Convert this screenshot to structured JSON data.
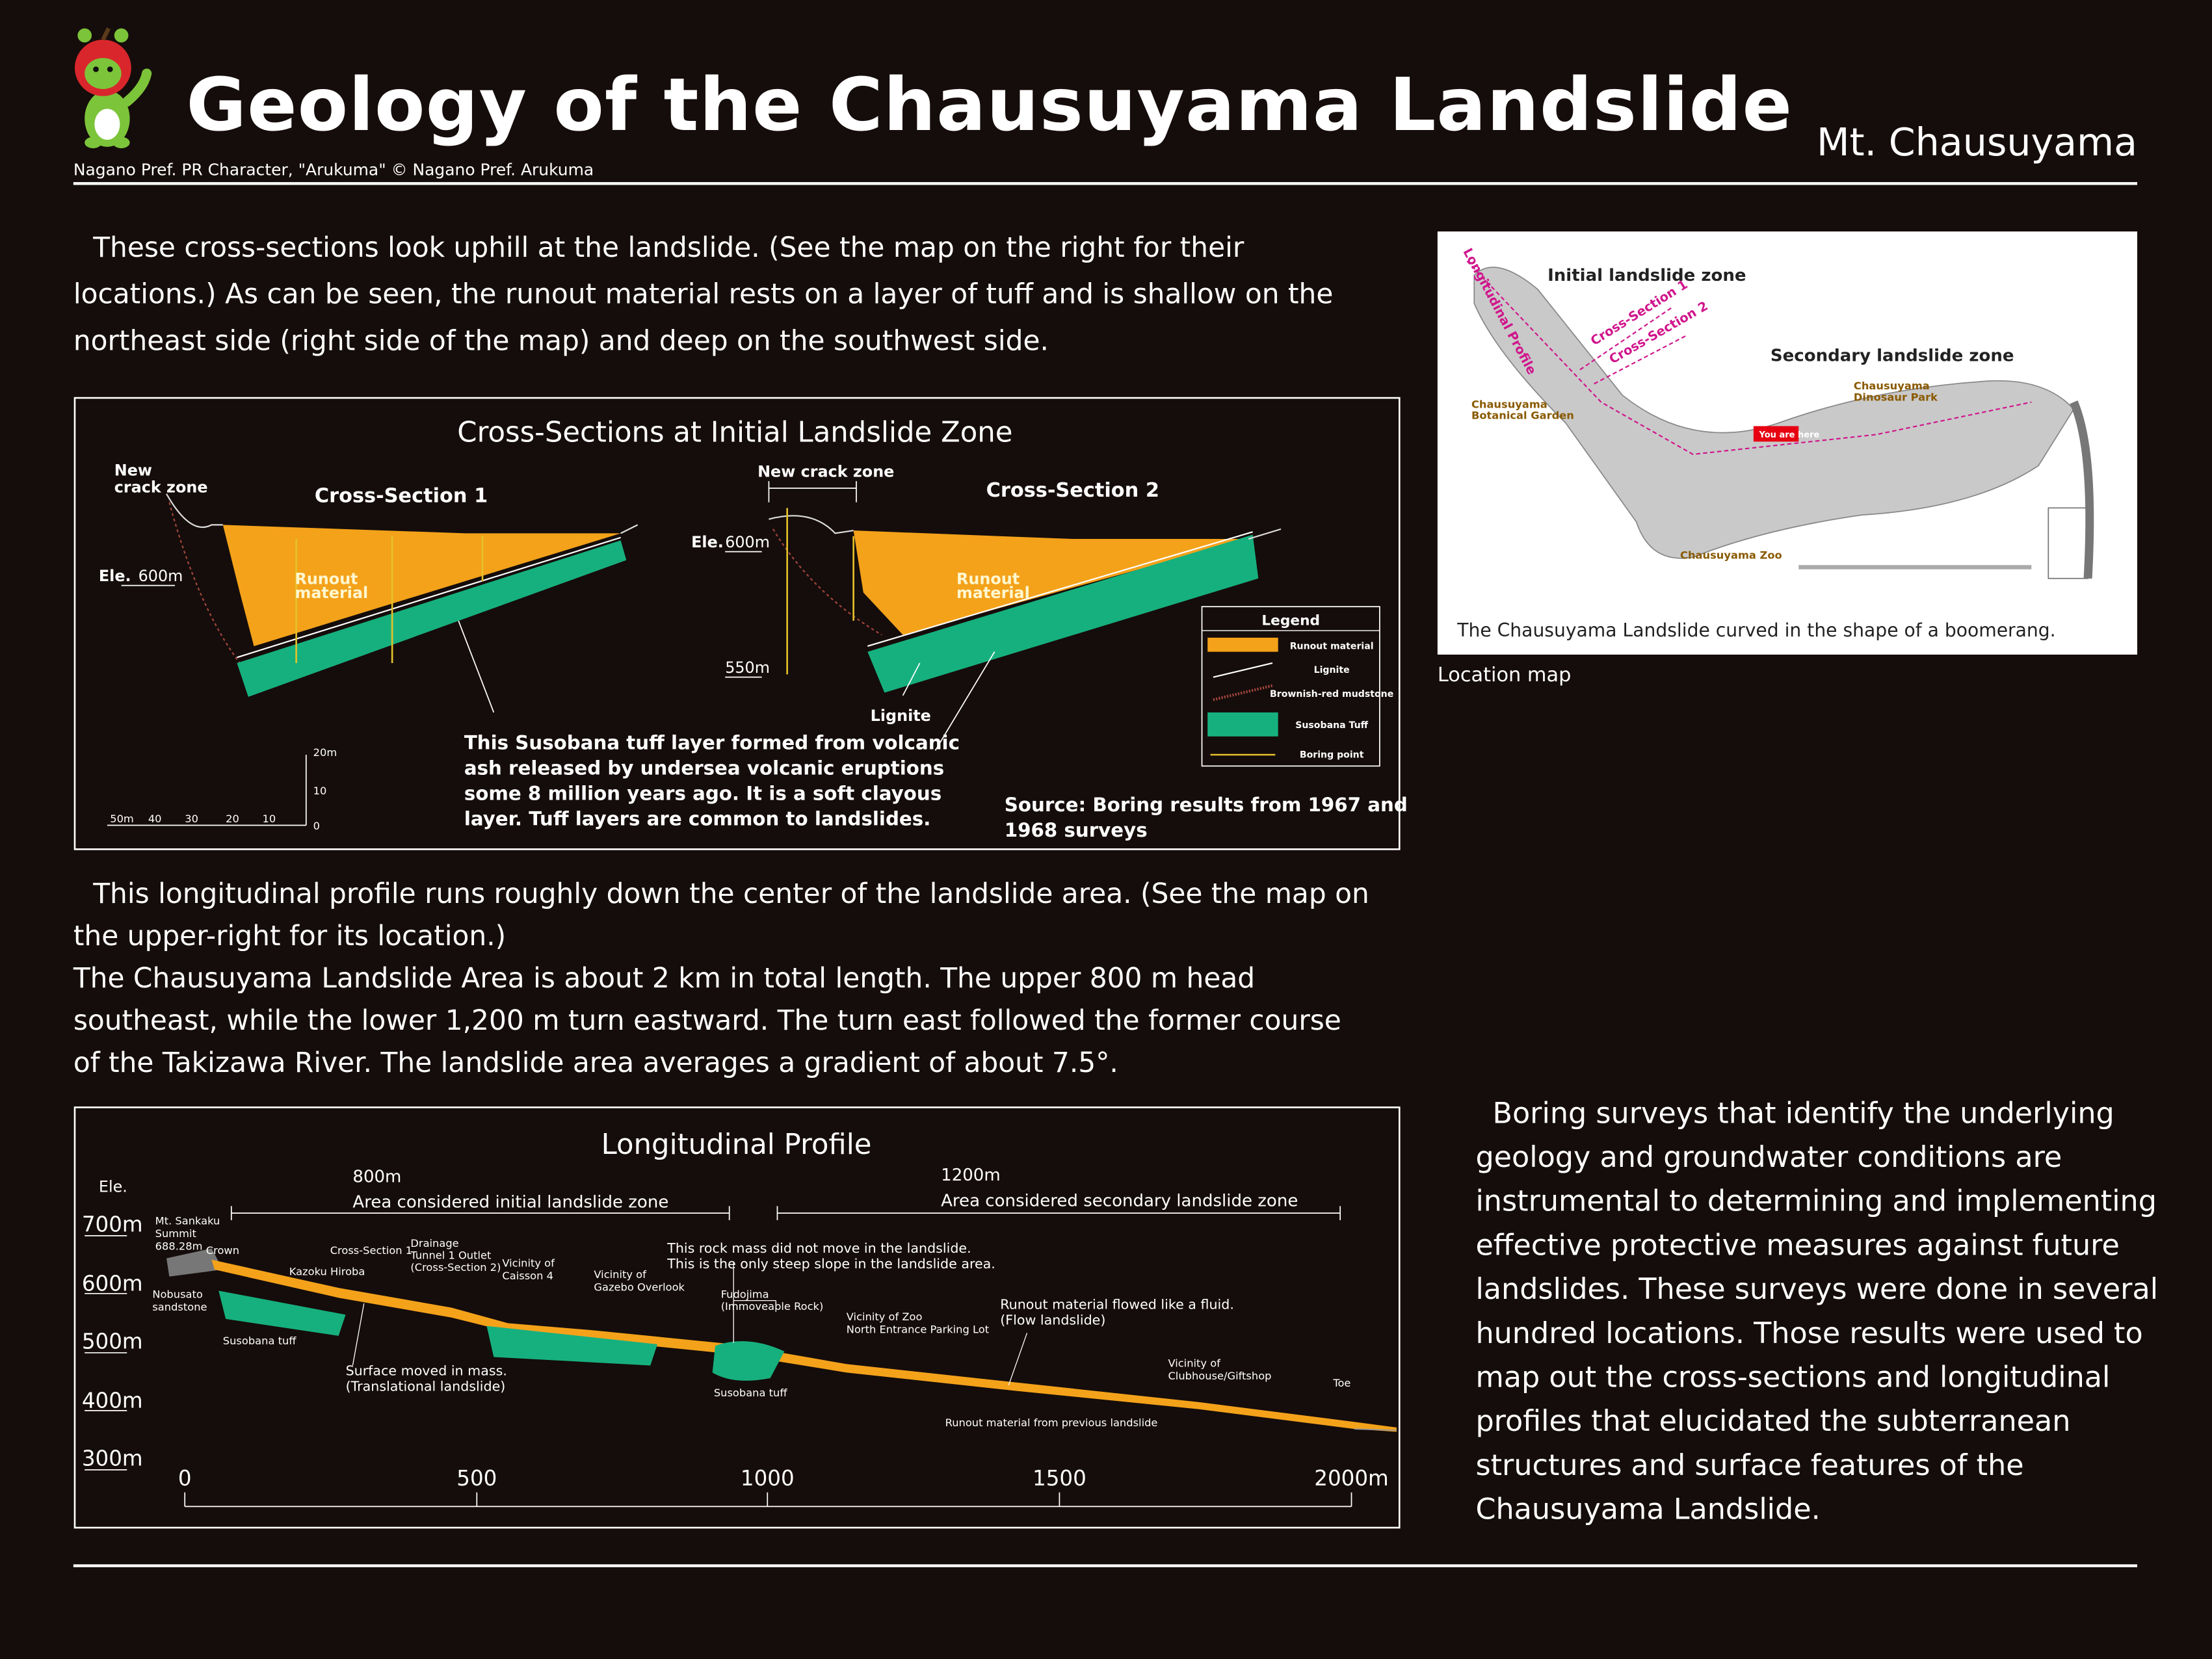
{
  "header": {
    "title": "Geology of the Chausuyama Landslide",
    "location": "Mt. Chausuyama",
    "credit": "Nagano Pref. PR Character, \"Arukuma\" © Nagano Pref. Arukuma"
  },
  "intro": {
    "lines": [
      "These cross-sections look uphill at the landslide. (See the map on the right for their",
      "locations.) As can be seen, the runout material rests on a layer of tuff and is shallow on the",
      "northeast side (right side of the map) and deep on the southwest side."
    ]
  },
  "cross_sections": {
    "title": "Cross-Sections at Initial Landslide Zone",
    "section1": {
      "name": "Cross-Section 1",
      "crack_zone": [
        "New",
        "crack zone"
      ],
      "elevation": [
        "Ele.",
        "600m"
      ],
      "runout": [
        "Runout",
        "material"
      ]
    },
    "section2": {
      "name": "Cross-Section 2",
      "crack_zone": "New crack zone",
      "elevation": [
        "Ele.",
        "600m"
      ],
      "lower_elevation": "550m",
      "runout": [
        "Runout",
        "material"
      ],
      "lignite": "Lignite"
    },
    "tuff_note": [
      "This Susobana tuff layer formed from volcanic",
      "ash released by undersea volcanic eruptions",
      "some 8 million years ago. It is a soft clayous",
      "layer. Tuff layers are common to landslides."
    ],
    "source": [
      "Source: Boring results from 1967 and",
      "1968 surveys"
    ],
    "scale": {
      "vertical": [
        "20m",
        "10",
        "0"
      ],
      "horizontal": [
        "50m",
        "40",
        "30",
        "20",
        "10"
      ]
    },
    "legend": {
      "title": "Legend",
      "items": [
        "Runout material",
        "Lignite",
        "Brownish-red mudstone",
        "Susobana Tuff",
        "Boring point"
      ]
    }
  },
  "profile_intro": {
    "lines": [
      "This longitudinal profile runs roughly down the center of the landslide area. (See the map on",
      "the upper-right for its location.)",
      "The Chausuyama Landslide Area is about 2 km in total length. The upper 800 m head",
      "southeast, while the lower 1,200 m turn eastward. The turn east followed the former course",
      "of the Takizawa River. The landslide area averages a gradient of about 7.5°."
    ]
  },
  "longitudinal_profile": {
    "title": "Longitudinal Profile",
    "y_label": "Ele.",
    "y_ticks": [
      "700m",
      "600m",
      "500m",
      "400m",
      "300m"
    ],
    "x_ticks": [
      "0",
      "500",
      "1000",
      "1500",
      "2000m"
    ],
    "zones": [
      {
        "length": "800m",
        "label": "Area considered initial landslide zone"
      },
      {
        "length": "1200m",
        "label": "Area considered secondary landslide zone"
      }
    ],
    "annotations": [
      [
        "Mt. Sankaku",
        "Summit",
        "688.28m"
      ],
      [
        "Crown"
      ],
      [
        "Nobusato",
        "sandstone"
      ],
      [
        "Kazoku Hiroba"
      ],
      [
        "Cross-Section 1"
      ],
      [
        "Drainage",
        "Tunnel 1 Outlet",
        "(Cross-Section 2)"
      ],
      [
        "Vicinity of",
        "Caisson 4"
      ],
      [
        "Vicinity of",
        "Gazebo Overlook"
      ],
      [
        "This rock mass did not move in the landslide.",
        "This is the only steep slope in the landslide area."
      ],
      [
        "Fudojima",
        "(Immoveable Rock)"
      ],
      [
        "Vicinity of Zoo",
        "North Entrance Parking Lot"
      ],
      [
        "Runout material flowed like a fluid.",
        "(Flow landslide)"
      ],
      [
        "Vicinity of",
        "Clubhouse/Giftshop"
      ],
      [
        "Toe"
      ],
      [
        "Susobana tuff"
      ],
      [
        "Surface moved in mass.",
        "(Translational landslide)"
      ],
      [
        "Susobana tuff"
      ],
      [
        "Runout material from previous landslide"
      ]
    ]
  },
  "location_map": {
    "profile_label": "Longitudinal Profile",
    "initial_zone": "Initial landslide zone",
    "secondary_zone": "Secondary landslide zone",
    "section1": "Cross-Section 1",
    "section2": "Cross-Section 2",
    "botanical_garden": [
      "Chausuyama",
      "Botanical Garden"
    ],
    "dinosaur_park": [
      "Chausuyama",
      "Dinosaur Park"
    ],
    "zoo": "Chausuyama Zoo",
    "you_are_here": "You are here",
    "caption": "The Chausuyama Landslide curved in the shape of a boomerang.",
    "label": "Location map"
  },
  "boring": {
    "lines": [
      "Boring surveys that identify the underlying",
      "geology and groundwater conditions are",
      "instrumental to determining and implementing",
      "effective protective measures against future",
      "landslides. These surveys were done in several",
      "hundred locations. Those results were used to",
      "map out the cross-sections and longitudinal",
      "profiles that elucidated the subterranean",
      "structures and surface features of the",
      "Chausuyama Landslide."
    ]
  }
}
